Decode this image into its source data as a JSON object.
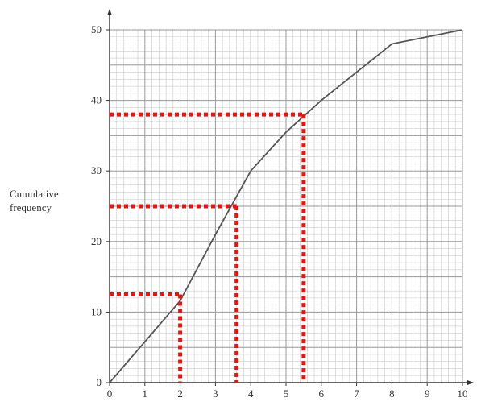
{
  "chart_data": {
    "type": "line",
    "title": "",
    "xlabel": "",
    "ylabel": [
      "Cumulative",
      "frequency"
    ],
    "xlim": [
      0,
      10
    ],
    "ylim": [
      0,
      50
    ],
    "x_ticks": [
      0,
      1,
      2,
      3,
      4,
      5,
      6,
      7,
      8,
      9,
      10
    ],
    "y_ticks": [
      0,
      10,
      20,
      30,
      40,
      50
    ],
    "grid": true,
    "series": [
      {
        "x": [
          0,
          1,
          2,
          3,
          4,
          5,
          6,
          7,
          8,
          9,
          10
        ],
        "y": [
          0,
          5.8,
          11.6,
          21,
          30,
          35.5,
          40,
          44,
          48,
          49,
          50
        ],
        "color": "#555555"
      }
    ],
    "guide_lines": [
      {
        "y": 12.5,
        "x": 2.0
      },
      {
        "y": 25,
        "x": 3.6
      },
      {
        "y": 38,
        "x": 5.5
      }
    ],
    "guide_color": "#e8140f"
  }
}
